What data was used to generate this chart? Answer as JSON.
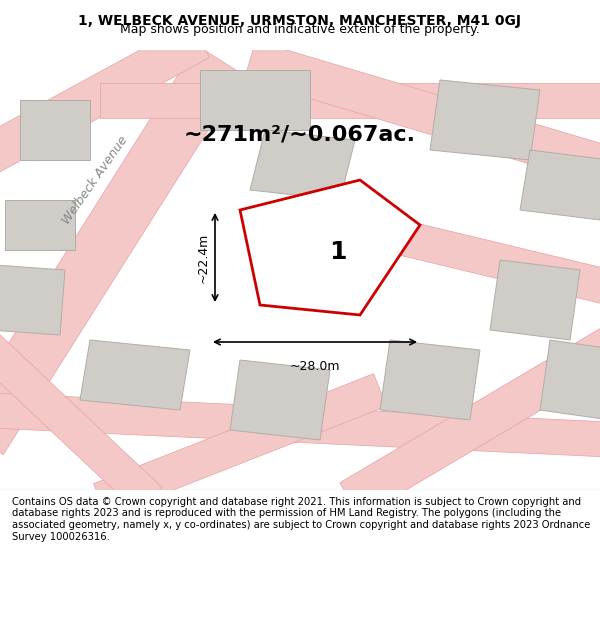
{
  "title_line1": "1, WELBECK AVENUE, URMSTON, MANCHESTER, M41 0GJ",
  "title_line2": "Map shows position and indicative extent of the property.",
  "area_text": "~271m²/~0.067ac.",
  "property_label": "1",
  "dim_width": "~28.0m",
  "dim_height": "~22.4m",
  "footer": "Contains OS data © Crown copyright and database right 2021. This information is subject to Crown copyright and database rights 2023 and is reproduced with the permission of HM Land Registry. The polygons (including the associated geometry, namely x, y co-ordinates) are subject to Crown copyright and database rights 2023 Ordnance Survey 100026316.",
  "bg_color": "#f0ede8",
  "map_bg": "#f0ede8",
  "road_color": "#f5c8c8",
  "road_outline": "#e8a0a0",
  "building_fill": "#d0cdc8",
  "building_outline": "#b0ada8",
  "property_fill": "#ffffff",
  "property_outline": "#cc0000",
  "street_label": "Welbeck Avenue",
  "footer_bg": "#ffffff"
}
